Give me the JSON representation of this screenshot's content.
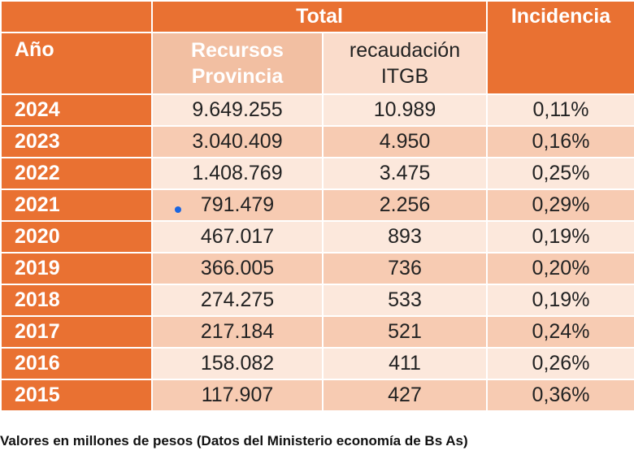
{
  "chart_data": {
    "type": "table",
    "header": {
      "group_total": "Total",
      "incidencia": "Incidencia",
      "year": "Año",
      "recursos": "Recursos Provincia",
      "recaudacion": "recaudación ITGB"
    },
    "rows": [
      {
        "year": "2024",
        "recursos": "9.649.255",
        "itgb": "10.989",
        "incidencia": "0,11%"
      },
      {
        "year": "2023",
        "recursos": "3.040.409",
        "itgb": "4.950",
        "incidencia": "0,16%"
      },
      {
        "year": "2022",
        "recursos": "1.408.769",
        "itgb": "3.475",
        "incidencia": "0,25%"
      },
      {
        "year": "2021",
        "recursos": "791.479",
        "itgb": "2.256",
        "incidencia": "0,29%"
      },
      {
        "year": "2020",
        "recursos": "467.017",
        "itgb": "893",
        "incidencia": "0,19%"
      },
      {
        "year": "2019",
        "recursos": "366.005",
        "itgb": "736",
        "incidencia": "0,20%"
      },
      {
        "year": "2018",
        "recursos": "274.275",
        "itgb": "533",
        "incidencia": "0,19%"
      },
      {
        "year": "2017",
        "recursos": "217.184",
        "itgb": "521",
        "incidencia": "0,24%"
      },
      {
        "year": "2016",
        "recursos": "158.082",
        "itgb": "411",
        "incidencia": "0,26%"
      },
      {
        "year": "2015",
        "recursos": "117.907",
        "itgb": "427",
        "incidencia": "0,36%"
      }
    ],
    "footnote": "Valores en millones de pesos (Datos del Ministerio economía de Bs As)",
    "colors": {
      "header": "#E97132",
      "row_light": "#FCE8DC",
      "row_dark": "#F7CBB2",
      "marker": "#1a66e0"
    }
  }
}
